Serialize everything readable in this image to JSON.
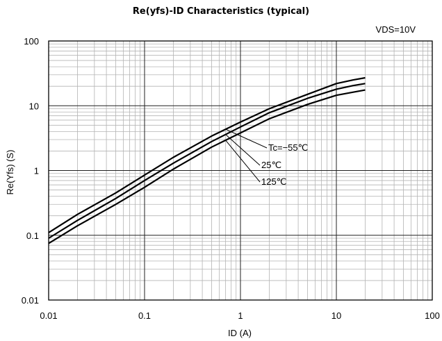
{
  "chart_data": {
    "type": "line",
    "title": "Re(yfs)-ID Characteristics (typical)",
    "condition": "VDS=10V",
    "xlabel": "ID (A)",
    "ylabel": "Re(Yfs) (S)",
    "xscale": "log",
    "yscale": "log",
    "xlim": [
      0.01,
      100
    ],
    "ylim": [
      0.01,
      100
    ],
    "xticks": [
      "0.01",
      "0.1",
      "1",
      "10",
      "100"
    ],
    "yticks": [
      "0.01",
      "0.1",
      "1",
      "10",
      "100"
    ],
    "grid": true,
    "series": [
      {
        "name": "Tc=−55℃",
        "x": [
          0.01,
          0.02,
          0.05,
          0.1,
          0.2,
          0.5,
          1,
          2,
          5,
          10,
          15,
          20
        ],
        "y": [
          0.11,
          0.21,
          0.45,
          0.85,
          1.6,
          3.4,
          5.6,
          9,
          15,
          22,
          25,
          27
        ]
      },
      {
        "name": "25℃",
        "x": [
          0.01,
          0.02,
          0.05,
          0.1,
          0.2,
          0.5,
          1,
          2,
          5,
          10,
          15,
          20
        ],
        "y": [
          0.09,
          0.17,
          0.37,
          0.7,
          1.3,
          2.8,
          4.7,
          7.8,
          13,
          18,
          20.5,
          22
        ]
      },
      {
        "name": "125℃",
        "x": [
          0.01,
          0.02,
          0.05,
          0.1,
          0.2,
          0.5,
          1,
          2,
          5,
          10,
          15,
          20
        ],
        "y": [
          0.075,
          0.14,
          0.3,
          0.55,
          1.05,
          2.3,
          3.8,
          6.3,
          10.5,
          14.5,
          16.2,
          17.5
        ]
      }
    ]
  }
}
